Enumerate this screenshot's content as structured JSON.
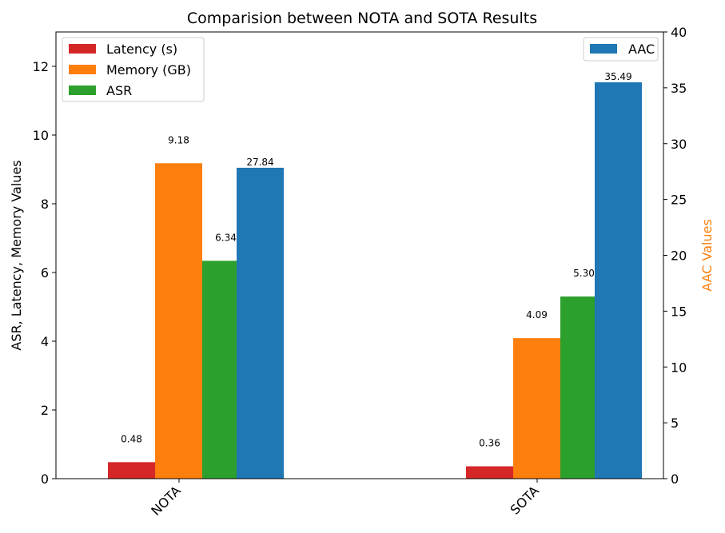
{
  "chart_data": {
    "type": "bar",
    "title": "Comparision between NOTA and SOTA Results",
    "categories": [
      "NOTA",
      "SOTA"
    ],
    "left_axis": {
      "label": "ASR, Latency, Memory Values",
      "ylim": [
        0,
        13
      ],
      "ticks": [
        0,
        2,
        4,
        6,
        8,
        10,
        12
      ]
    },
    "right_axis": {
      "label": "AAC Values",
      "label_color": "#ff7f0e",
      "ylim": [
        0,
        40
      ],
      "ticks": [
        0,
        5,
        10,
        15,
        20,
        25,
        30,
        35,
        40
      ]
    },
    "series": [
      {
        "name": "Latency (s)",
        "axis": "left",
        "color": "#d62728",
        "values": [
          0.48,
          0.36
        ],
        "value_labels": [
          "0.48",
          "0.36"
        ]
      },
      {
        "name": "Memory (GB)",
        "axis": "left",
        "color": "#ff7f0e",
        "values": [
          9.18,
          4.09
        ],
        "value_labels": [
          "9.18",
          "4.09"
        ]
      },
      {
        "name": "ASR",
        "axis": "left",
        "color": "#2ca02c",
        "values": [
          6.34,
          5.3
        ],
        "value_labels": [
          "6.34",
          "5.30"
        ]
      },
      {
        "name": "AAC",
        "axis": "right",
        "color": "#1f77b4",
        "values": [
          27.84,
          35.49
        ],
        "value_labels": [
          "27.84",
          "35.49"
        ]
      }
    ],
    "legend_left": {
      "placement": "top-left",
      "entries": [
        "Latency (s)",
        "Memory (GB)",
        "ASR"
      ]
    },
    "legend_right": {
      "placement": "top-right",
      "entries": [
        "AAC"
      ]
    },
    "grid": false
  }
}
